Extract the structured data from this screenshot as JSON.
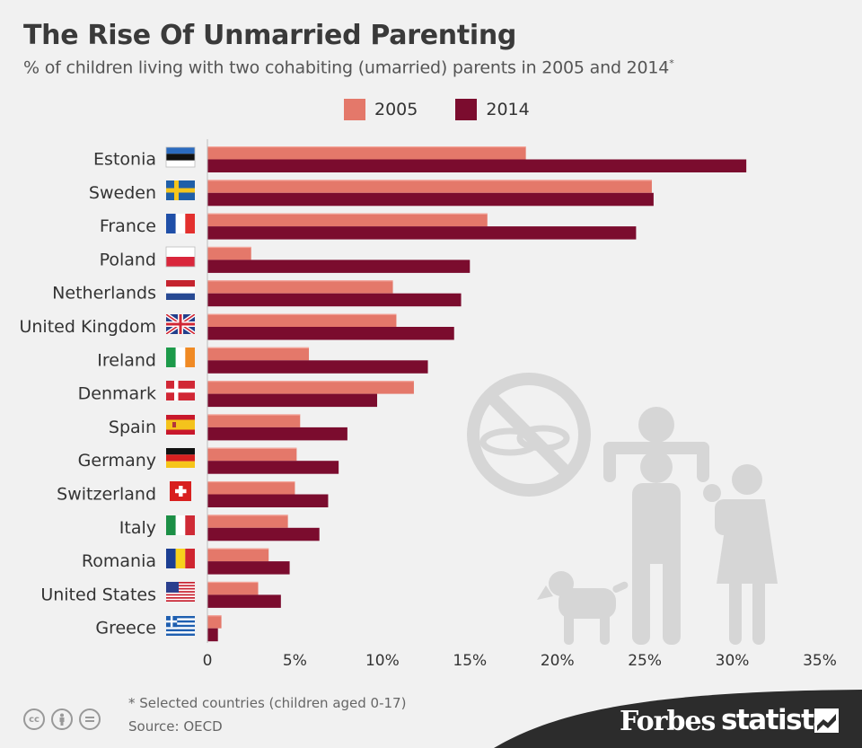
{
  "chart_data": {
    "type": "bar",
    "orientation": "horizontal",
    "title": "The Rise Of Unmarried Parenting",
    "subtitle": "% of children living with two cohabiting (umarried) parents in 2005 and 2014",
    "subtitle_mark": "*",
    "categories": [
      "Estonia",
      "Sweden",
      "France",
      "Poland",
      "Netherlands",
      "United Kingdom",
      "Ireland",
      "Denmark",
      "Spain",
      "Germany",
      "Switzerland",
      "Italy",
      "Romania",
      "United States",
      "Greece"
    ],
    "series": [
      {
        "name": "2005",
        "color": "#e4786a",
        "values": [
          18.2,
          25.4,
          16.0,
          2.5,
          10.6,
          10.8,
          5.8,
          11.8,
          5.3,
          5.1,
          5.0,
          4.6,
          3.5,
          2.9,
          0.8
        ]
      },
      {
        "name": "2014",
        "color": "#7b0c2e",
        "values": [
          30.8,
          25.5,
          24.5,
          15.0,
          14.5,
          14.1,
          12.6,
          9.7,
          8.0,
          7.5,
          6.9,
          6.4,
          4.7,
          4.2,
          0.6
        ]
      }
    ],
    "xlim": [
      0,
      35
    ],
    "xticks": [
      0,
      5,
      10,
      15,
      20,
      25,
      30,
      35
    ],
    "xtick_labels": [
      "0",
      "5%",
      "10%",
      "15%",
      "20%",
      "25%",
      "30%",
      "35%"
    ],
    "xlabel": "",
    "ylabel": "",
    "grid": false
  },
  "legend": [
    {
      "label": "2005",
      "color": "#e4786a"
    },
    {
      "label": "2014",
      "color": "#7b0c2e"
    }
  ],
  "footer": {
    "footnote": "* Selected countries (children aged 0-17)",
    "source": "Source: OECD",
    "brand_1": "Forbes",
    "brand_2": "statista",
    "license_icons": [
      "cc-icon",
      "attribution-icon",
      "no-derivatives-icon"
    ]
  }
}
